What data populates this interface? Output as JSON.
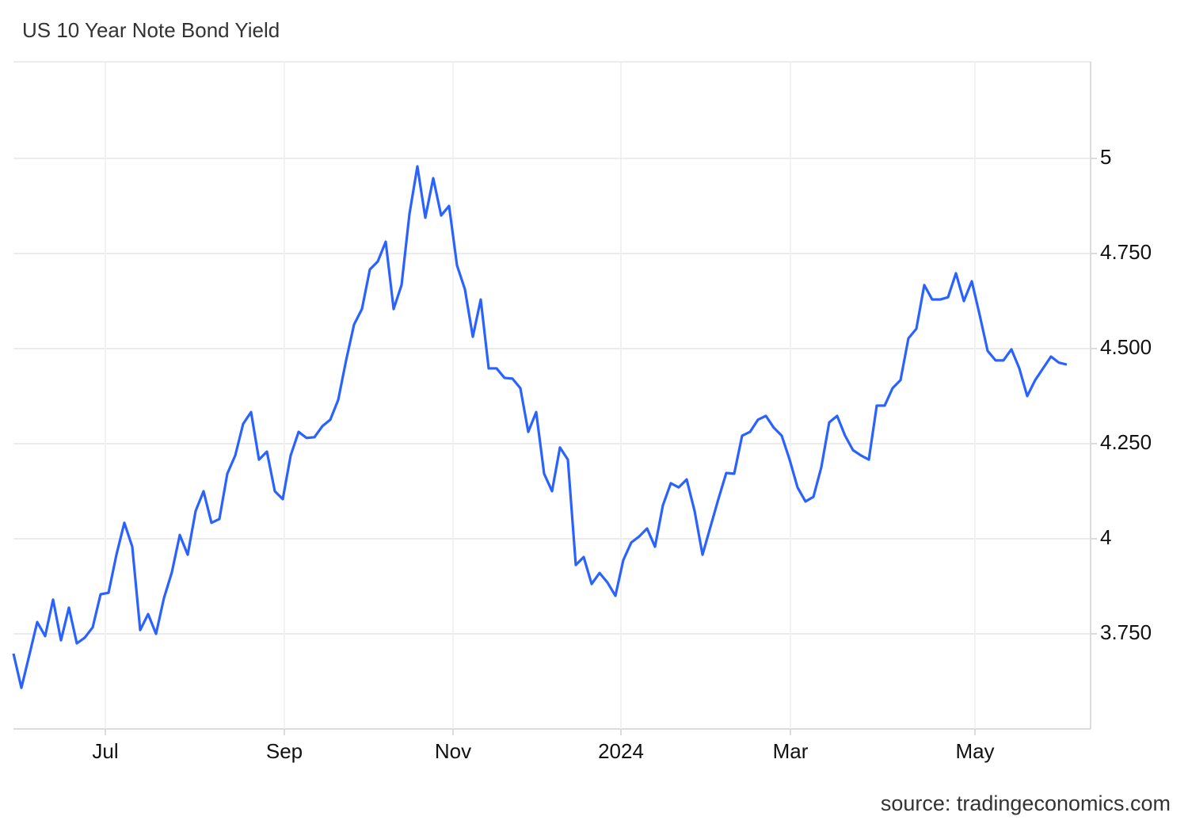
{
  "chart_data": {
    "type": "line",
    "title": "US 10 Year Note Bond Yield",
    "source": "source: tradingeconomics.com",
    "color": "#2962ff",
    "grid": true,
    "values": [
      3.698,
      3.608,
      3.694,
      3.781,
      3.744,
      3.84,
      3.733,
      3.819,
      3.725,
      3.74,
      3.767,
      3.854,
      3.858,
      3.958,
      4.042,
      3.979,
      3.76,
      3.802,
      3.75,
      3.844,
      3.912,
      4.01,
      3.958,
      4.073,
      4.125,
      4.042,
      4.052,
      4.171,
      4.219,
      4.302,
      4.333,
      4.208,
      4.229,
      4.125,
      4.104,
      4.219,
      4.281,
      4.265,
      4.267,
      4.296,
      4.313,
      4.365,
      4.469,
      4.563,
      4.604,
      4.708,
      4.729,
      4.781,
      4.604,
      4.667,
      4.854,
      4.979,
      4.844,
      4.948,
      4.85,
      4.875,
      4.719,
      4.656,
      4.531,
      4.629,
      4.448,
      4.448,
      4.423,
      4.421,
      4.396,
      4.281,
      4.333,
      4.171,
      4.125,
      4.24,
      4.208,
      3.931,
      3.952,
      3.881,
      3.91,
      3.885,
      3.85,
      3.944,
      3.99,
      4.006,
      4.027,
      3.979,
      4.088,
      4.146,
      4.135,
      4.156,
      4.073,
      3.958,
      4.031,
      4.104,
      4.173,
      4.171,
      4.271,
      4.281,
      4.313,
      4.323,
      4.292,
      4.271,
      4.208,
      4.135,
      4.098,
      4.11,
      4.188,
      4.306,
      4.323,
      4.271,
      4.233,
      4.219,
      4.208,
      4.35,
      4.35,
      4.396,
      4.417,
      4.527,
      4.552,
      4.667,
      4.629,
      4.629,
      4.635,
      4.698,
      4.625,
      4.677,
      4.588,
      4.494,
      4.469,
      4.469,
      4.498,
      4.448,
      4.375,
      4.417,
      4.448,
      4.479,
      4.463,
      4.458
    ],
    "xlim": [
      0,
      136
    ],
    "xticks": [
      {
        "value": 11.6,
        "label": "Jul"
      },
      {
        "value": 34.2,
        "label": "Sep"
      },
      {
        "value": 55.5,
        "label": "Nov"
      },
      {
        "value": 76.7,
        "label": "2024"
      },
      {
        "value": 98.1,
        "label": "Mar"
      },
      {
        "value": 121.4,
        "label": "May"
      }
    ],
    "ylim": [
      3.5,
      5.254
    ],
    "yticks": [
      {
        "value": 3.75,
        "label": "3.750"
      },
      4,
      {
        "value": 4.25,
        "label": "4.250"
      },
      {
        "value": 4.5,
        "label": "4.500"
      },
      {
        "value": 4.75,
        "label": "4.750"
      },
      5
    ]
  }
}
